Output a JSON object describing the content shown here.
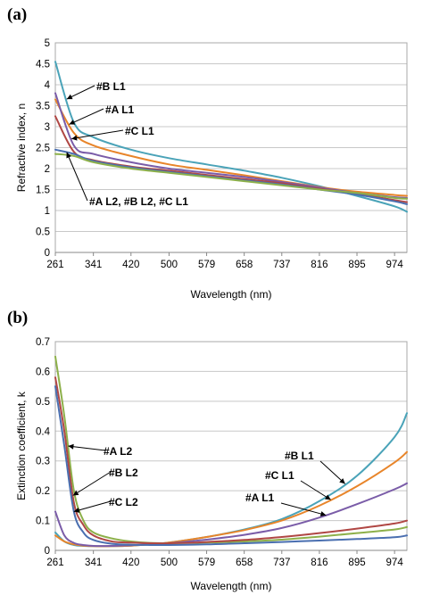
{
  "chart_data": [
    {
      "type": "line",
      "panel_label": "(a)",
      "xlabel": "Wavelength (nm)",
      "ylabel": "Refractive index, n",
      "x_ticks": [
        "261",
        "341",
        "420",
        "500",
        "579",
        "658",
        "737",
        "816",
        "895",
        "974"
      ],
      "x_range": [
        261,
        1000
      ],
      "y_ticks": [
        "0",
        "0.5",
        "1",
        "1.5",
        "2",
        "2.5",
        "3",
        "3.5",
        "4",
        "4.5",
        "5"
      ],
      "ylim": [
        0,
        5
      ],
      "grid": "horizontal",
      "x": [
        261,
        300,
        341,
        420,
        500,
        579,
        658,
        737,
        816,
        895,
        974,
        1000
      ],
      "series": [
        {
          "name": "#B L1",
          "color": "#4aa3b8",
          "values": [
            4.55,
            3.1,
            2.75,
            2.45,
            2.25,
            2.1,
            1.95,
            1.78,
            1.58,
            1.35,
            1.1,
            0.97
          ]
        },
        {
          "name": "#A L1",
          "color": "#e8852a",
          "values": [
            3.65,
            2.85,
            2.55,
            2.3,
            2.1,
            1.97,
            1.84,
            1.7,
            1.56,
            1.45,
            1.37,
            1.35
          ]
        },
        {
          "name": "#C L1",
          "color": "#7a5ca8",
          "values": [
            3.8,
            2.55,
            2.35,
            2.15,
            2.0,
            1.9,
            1.8,
            1.68,
            1.55,
            1.42,
            1.32,
            1.3
          ]
        },
        {
          "name": "#A L2",
          "color": "#b04744",
          "values": [
            3.25,
            2.4,
            2.2,
            2.05,
            1.95,
            1.85,
            1.75,
            1.65,
            1.52,
            1.4,
            1.25,
            1.2
          ]
        },
        {
          "name": "#B L2",
          "color": "#4a6fb0",
          "values": [
            2.45,
            2.35,
            2.18,
            2.03,
            1.92,
            1.82,
            1.72,
            1.62,
            1.5,
            1.38,
            1.22,
            1.15
          ]
        },
        {
          "name": "#C L2",
          "color": "#8db04a",
          "values": [
            2.35,
            2.3,
            2.15,
            2.0,
            1.9,
            1.8,
            1.7,
            1.6,
            1.5,
            1.42,
            1.3,
            1.28
          ]
        }
      ],
      "annotations": [
        {
          "text": "#B L1",
          "series": "#B L1",
          "at_x": 285
        },
        {
          "text": "#A L1",
          "series": "#A L1",
          "at_x": 290
        },
        {
          "text": "#C L1",
          "series": "#C L1",
          "at_x": 295
        },
        {
          "text": "#A L2, #B L2, #C L1",
          "series": "#B L2",
          "at_x": 285
        }
      ]
    },
    {
      "type": "line",
      "panel_label": "(b)",
      "xlabel": "Wavelength (nm)",
      "ylabel": "Extinction coefficient, k",
      "x_ticks": [
        "261",
        "341",
        "420",
        "500",
        "579",
        "658",
        "737",
        "816",
        "895",
        "974"
      ],
      "x_range": [
        261,
        1000
      ],
      "y_ticks": [
        "0",
        "0.1",
        "0.2",
        "0.3",
        "0.4",
        "0.5",
        "0.6",
        "0.7"
      ],
      "ylim": [
        0,
        0.7
      ],
      "grid": "horizontal",
      "x": [
        261,
        280,
        300,
        320,
        341,
        380,
        420,
        460,
        500,
        579,
        658,
        737,
        816,
        895,
        974,
        1000
      ],
      "series": [
        {
          "name": "#B L1",
          "color": "#4aa3b8",
          "values": [
            0.06,
            0.03,
            0.018,
            0.015,
            0.014,
            0.014,
            0.016,
            0.02,
            0.026,
            0.045,
            0.07,
            0.105,
            0.165,
            0.25,
            0.38,
            0.46
          ]
        },
        {
          "name": "#C L1",
          "color": "#e8852a",
          "values": [
            0.05,
            0.03,
            0.02,
            0.016,
            0.014,
            0.014,
            0.016,
            0.02,
            0.026,
            0.045,
            0.068,
            0.1,
            0.15,
            0.215,
            0.295,
            0.33
          ]
        },
        {
          "name": "#A L1",
          "color": "#7a5ca8",
          "values": [
            0.13,
            0.05,
            0.025,
            0.018,
            0.015,
            0.015,
            0.017,
            0.02,
            0.024,
            0.036,
            0.052,
            0.075,
            0.11,
            0.155,
            0.205,
            0.225
          ]
        },
        {
          "name": "#A L2",
          "color": "#8db04a",
          "values": [
            0.65,
            0.45,
            0.2,
            0.1,
            0.06,
            0.04,
            0.03,
            0.025,
            0.024,
            0.026,
            0.03,
            0.036,
            0.046,
            0.058,
            0.07,
            0.078
          ]
        },
        {
          "name": "#B L2",
          "color": "#b04744",
          "values": [
            0.58,
            0.4,
            0.16,
            0.085,
            0.05,
            0.03,
            0.026,
            0.024,
            0.024,
            0.028,
            0.035,
            0.045,
            0.058,
            0.073,
            0.09,
            0.1
          ]
        },
        {
          "name": "#C L2",
          "color": "#4a6fb0",
          "values": [
            0.55,
            0.35,
            0.13,
            0.06,
            0.035,
            0.022,
            0.019,
            0.018,
            0.018,
            0.02,
            0.024,
            0.028,
            0.033,
            0.038,
            0.044,
            0.05
          ]
        }
      ],
      "annotations": [
        {
          "text": "#A L2",
          "series": "#A L2",
          "at_x": 288
        },
        {
          "text": "#B L2",
          "series": "#B L2",
          "at_x": 298
        },
        {
          "text": "#C L2",
          "series": "#C L2",
          "at_x": 300
        },
        {
          "text": "#B L1",
          "series": "#B L1",
          "at_x": 870
        },
        {
          "text": "#C L1",
          "series": "#C L1",
          "at_x": 840
        },
        {
          "text": "#A L1",
          "series": "#A L1",
          "at_x": 830
        }
      ]
    }
  ]
}
